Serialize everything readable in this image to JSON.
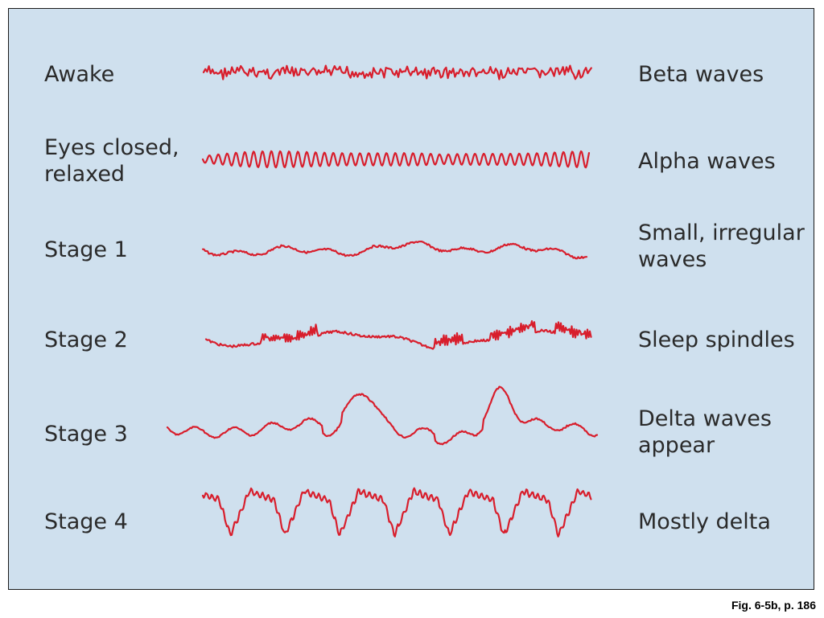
{
  "rows": [
    {
      "state": [
        "Awake"
      ],
      "wave": [
        "Beta waves"
      ],
      "wave_type": "beta",
      "trace_color": "#d81e2c"
    },
    {
      "state": [
        "Eyes closed,",
        "relaxed"
      ],
      "wave": [
        "Alpha waves"
      ],
      "wave_type": "alpha",
      "trace_color": "#d81e2c"
    },
    {
      "state": [
        "Stage 1"
      ],
      "wave": [
        "Small, irregular",
        "waves"
      ],
      "wave_type": "small-irregular",
      "trace_color": "#d81e2c"
    },
    {
      "state": [
        "Stage 2"
      ],
      "wave": [
        "Sleep spindles"
      ],
      "wave_type": "spindles",
      "trace_color": "#d81e2c"
    },
    {
      "state": [
        "Stage 3"
      ],
      "wave": [
        "Delta waves",
        "appear"
      ],
      "wave_type": "delta-appear",
      "trace_color": "#d81e2c"
    },
    {
      "state": [
        "Stage 4"
      ],
      "wave": [
        "Mostly delta"
      ],
      "wave_type": "delta",
      "trace_color": "#d81e2c"
    }
  ],
  "caption": "Fig. 6-5b, p. 186",
  "colors": {
    "panel_background": "#cfe0ee",
    "panel_border": "#1a1a1a",
    "trace": "#d81e2c",
    "text": "#2a2a2a"
  }
}
